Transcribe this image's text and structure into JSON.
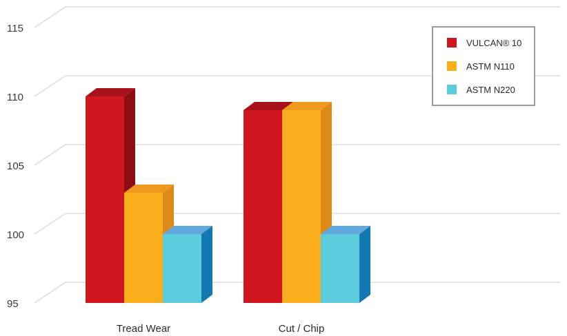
{
  "chart_data": {
    "type": "bar",
    "style": "3d",
    "categories": [
      "Tread Wear",
      "Cut / Chip"
    ],
    "series": [
      {
        "name": "VULCAN® 10",
        "values": [
          110,
          109
        ],
        "color": "#d0161e",
        "top_color": "#a8121a",
        "side_color": "#8c0e14"
      },
      {
        "name": "ASTM N110",
        "values": [
          103,
          109
        ],
        "color": "#f9ae1b",
        "top_color": "#ef9a1d",
        "side_color": "#dd8a19"
      },
      {
        "name": "ASTM N220",
        "values": [
          100,
          100
        ],
        "color": "#5ccbde",
        "top_color": "#63a8dd",
        "side_color": "#1479b0"
      }
    ],
    "yticks": [
      95,
      100,
      105,
      110,
      115
    ],
    "ylim": [
      95,
      115
    ],
    "grid": true,
    "legend_position": "top-right",
    "title": "",
    "xlabel": "",
    "ylabel": ""
  }
}
